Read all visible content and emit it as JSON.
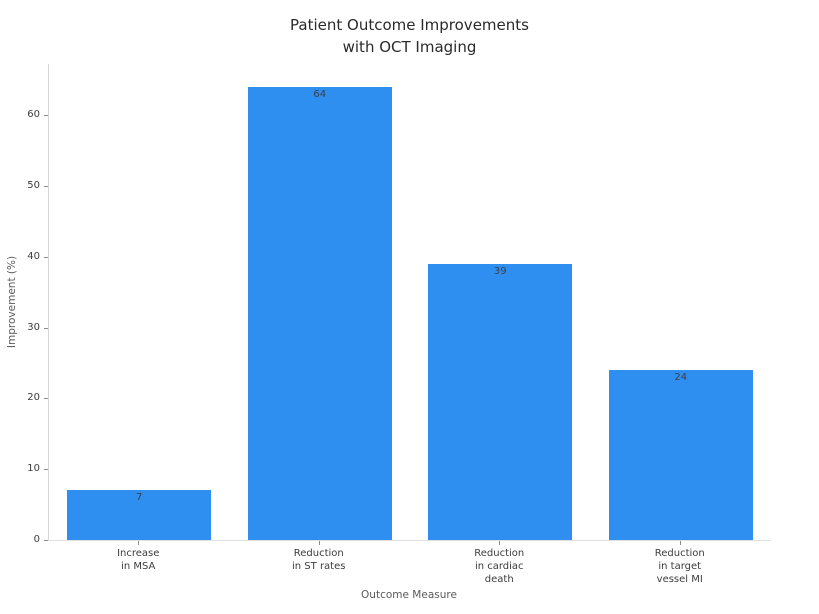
{
  "chart_data": {
    "type": "bar",
    "title": "Patient Outcome Improvements\nwith OCT Imaging",
    "categories": [
      "Increase\nin MSA",
      "Reduction\nin ST rates",
      "Reduction\nin cardiac\ndeath",
      "Reduction\nin target\nvessel MI"
    ],
    "values": [
      7,
      64,
      39,
      24
    ],
    "value_labels": [
      "7",
      "64",
      "39",
      "24"
    ],
    "xlabel": "Outcome Measure",
    "ylabel": "Improvement (%)",
    "yticks": [
      0,
      10,
      20,
      30,
      40,
      50,
      60
    ],
    "ylim": [
      0,
      67.2
    ],
    "bar_color": "#2f8ff1",
    "grid": false,
    "legend": "none",
    "value_label_color": "#3a414a"
  }
}
